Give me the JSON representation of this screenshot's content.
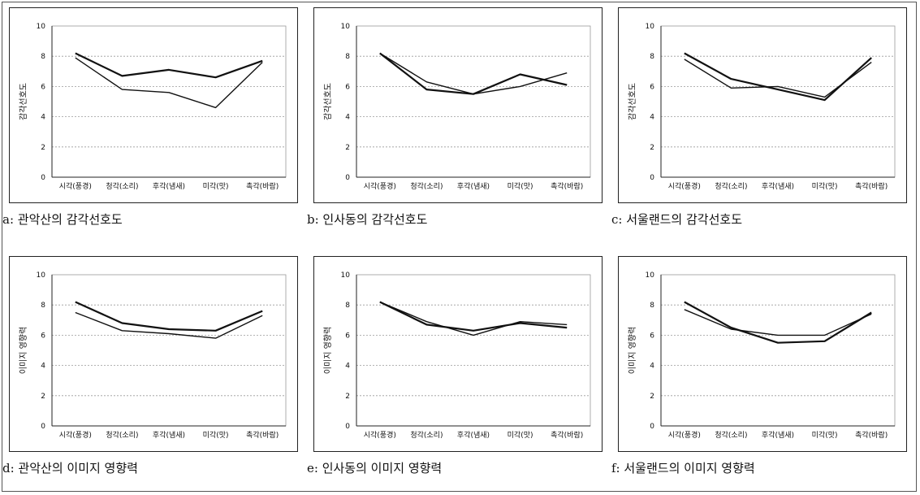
{
  "chart_data": [
    {
      "type": "line",
      "caption": "a: 관악산의 감각선호도",
      "ylabel": "감각선호도",
      "categories": [
        "시각(풍경)",
        "청각(소리)",
        "후각(냄새)",
        "미각(맛)",
        "촉각(바람)"
      ],
      "ylim": [
        0,
        10
      ],
      "yticks": [
        "0",
        "2",
        "4",
        "6",
        "8",
        "10"
      ],
      "grid": true,
      "series": [
        {
          "values": [
            8.2,
            6.7,
            7.1,
            6.6,
            7.7
          ]
        },
        {
          "values": [
            7.9,
            5.8,
            5.6,
            4.6,
            7.6
          ]
        }
      ]
    },
    {
      "type": "line",
      "caption": "b: 인사동의 감각선호도",
      "ylabel": "감각선호도",
      "categories": [
        "시각(풍경)",
        "청각(소리)",
        "후각(냄새)",
        "미각(맛)",
        "촉각(바람)"
      ],
      "ylim": [
        0,
        10
      ],
      "yticks": [
        "0",
        "2",
        "4",
        "6",
        "8",
        "10"
      ],
      "grid": true,
      "series": [
        {
          "values": [
            8.2,
            5.8,
            5.5,
            6.8,
            6.1
          ]
        },
        {
          "values": [
            8.2,
            6.3,
            5.5,
            6.0,
            6.9
          ]
        }
      ]
    },
    {
      "type": "line",
      "caption": "c: 서울랜드의 감각선호도",
      "ylabel": "감각선호도",
      "categories": [
        "시각(풍경)",
        "청각(소리)",
        "후각(냄새)",
        "미각(맛)",
        "촉각(바람)"
      ],
      "ylim": [
        0,
        10
      ],
      "yticks": [
        "0",
        "2",
        "4",
        "6",
        "8",
        "10"
      ],
      "grid": true,
      "series": [
        {
          "values": [
            8.2,
            6.5,
            5.8,
            5.1,
            7.9
          ]
        },
        {
          "values": [
            7.8,
            5.9,
            6.0,
            5.3,
            7.6
          ]
        }
      ]
    },
    {
      "type": "line",
      "caption": "d: 관악산의 이미지 영향력",
      "ylabel": "이미지 영향력",
      "categories": [
        "시각(풍경)",
        "청각(소리)",
        "후각(냄새)",
        "미각(맛)",
        "촉각(바람)"
      ],
      "ylim": [
        0,
        10
      ],
      "yticks": [
        "0",
        "2",
        "4",
        "6",
        "8",
        "10"
      ],
      "grid": true,
      "series": [
        {
          "values": [
            8.2,
            6.8,
            6.4,
            6.3,
            7.6
          ]
        },
        {
          "values": [
            7.5,
            6.3,
            6.1,
            5.8,
            7.3
          ]
        }
      ]
    },
    {
      "type": "line",
      "caption": "e: 인사동의 이미지 영향력",
      "ylabel": "이미지 영향력",
      "categories": [
        "시각(풍경)",
        "청각(소리)",
        "후각(냄새)",
        "미각(맛)",
        "촉각(바람)"
      ],
      "ylim": [
        0,
        10
      ],
      "yticks": [
        "0",
        "2",
        "4",
        "6",
        "8",
        "10"
      ],
      "grid": true,
      "series": [
        {
          "values": [
            8.2,
            6.7,
            6.3,
            6.8,
            6.5
          ]
        },
        {
          "values": [
            8.2,
            6.9,
            6.0,
            6.9,
            6.7
          ]
        }
      ]
    },
    {
      "type": "line",
      "caption": "f: 서울랜드의 이미지 영향력",
      "ylabel": "이미지 영향력",
      "categories": [
        "시각(풍경)",
        "청각(소리)",
        "후각(냄새)",
        "미각(맛)",
        "촉각(바람)"
      ],
      "ylim": [
        0,
        10
      ],
      "yticks": [
        "0",
        "2",
        "4",
        "6",
        "8",
        "10"
      ],
      "grid": true,
      "series": [
        {
          "values": [
            8.2,
            6.5,
            5.5,
            5.6,
            7.5
          ]
        },
        {
          "values": [
            7.7,
            6.4,
            6.0,
            6.0,
            7.4
          ]
        }
      ]
    }
  ]
}
